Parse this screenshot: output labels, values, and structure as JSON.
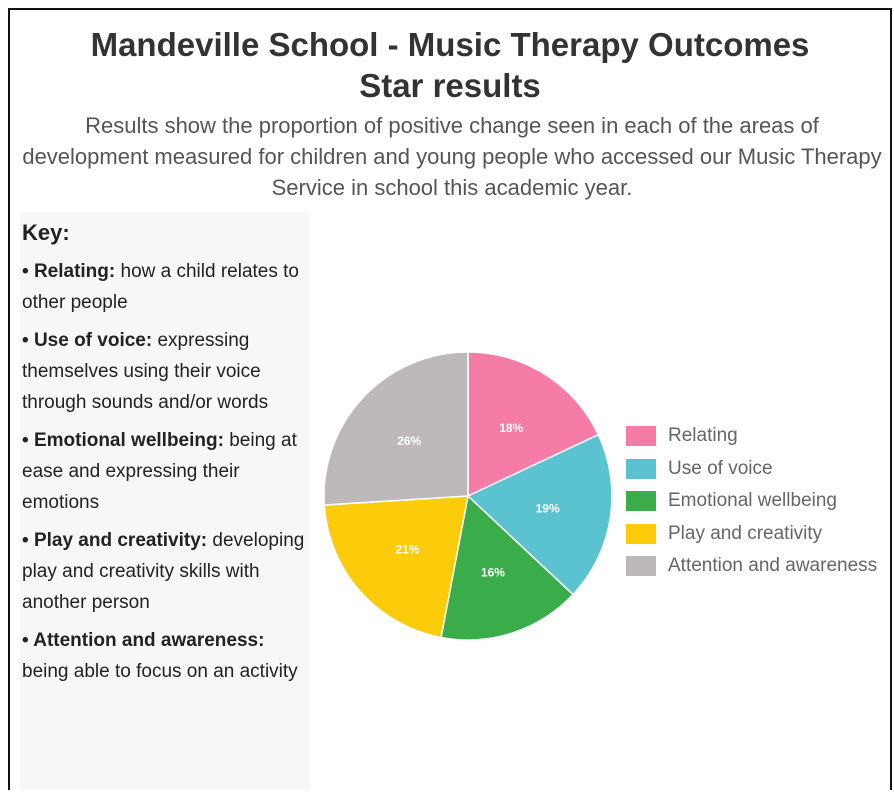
{
  "header": {
    "title_line1": "Mandeville School - Music Therapy Outcomes",
    "title_line2": "Star results",
    "subtitle": "Results show the proportion of positive change seen in each of the areas of development measured for children and young people who accessed our Music Therapy Service in school this academic year."
  },
  "key": {
    "heading": "Key:",
    "items": [
      {
        "term": "Relating:",
        "desc": "how a child relates to other people"
      },
      {
        "term": "Use of voice:",
        "desc": "expressing themselves using their voice through sounds and/or words"
      },
      {
        "term": "Emotional wellbeing:",
        "desc": "being at ease and expressing their emotions"
      },
      {
        "term": "Play and creativity:",
        "desc": "developing play and creativity skills with another person"
      },
      {
        "term": "Attention and awareness:",
        "desc": "being able to focus on an activity"
      }
    ]
  },
  "chart_data": {
    "type": "pie",
    "title": "",
    "legend_position": "right",
    "categories": [
      "Relating",
      "Use of voice",
      "Emotional wellbeing",
      "Play and creativity",
      "Attention and awareness"
    ],
    "values": [
      18,
      19,
      16,
      21,
      26
    ],
    "labels": [
      "18%",
      "19%",
      "16%",
      "21%",
      "26%"
    ],
    "colors": [
      "#f67ca8",
      "#5bc2cf",
      "#3aad4a",
      "#fccb0a",
      "#bdb9ba"
    ]
  }
}
